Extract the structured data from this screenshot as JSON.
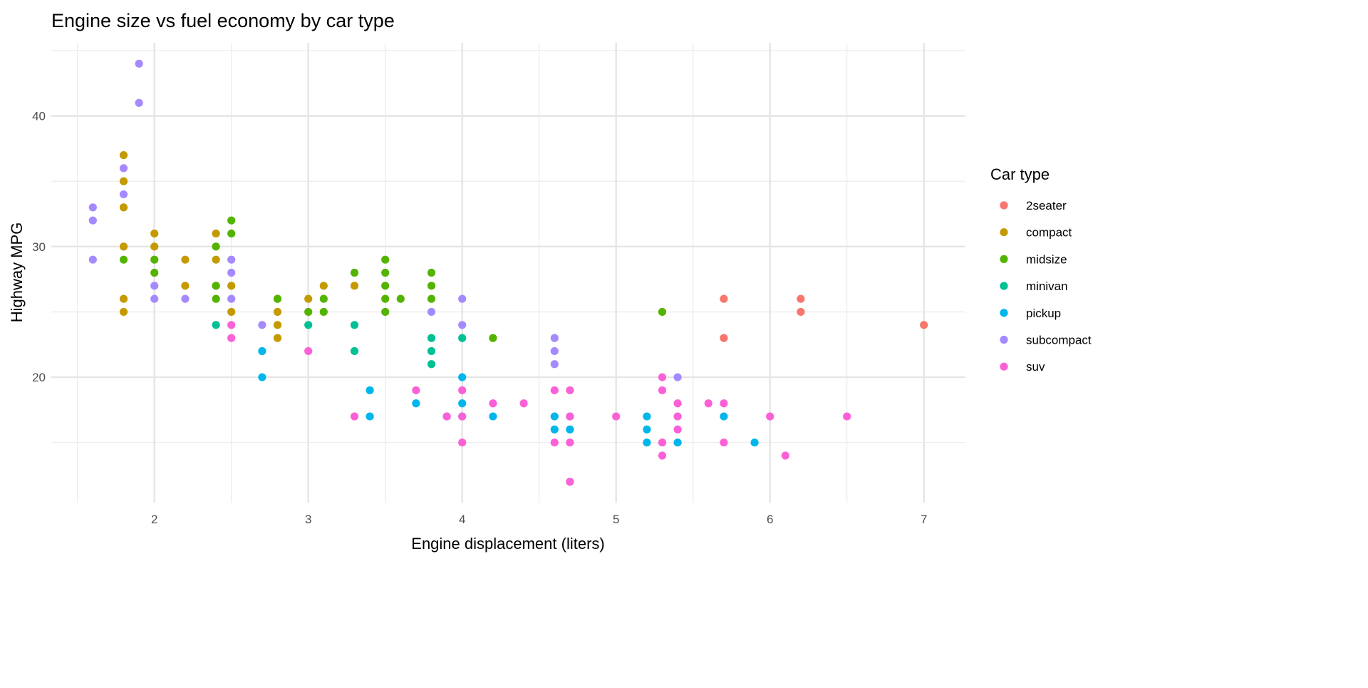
{
  "chart_data": {
    "type": "scatter",
    "title": "Engine size vs fuel economy by car type",
    "xlabel": "Engine displacement (liters)",
    "ylabel": "Highway MPG",
    "xlim": [
      1.33,
      7.27
    ],
    "ylim": [
      10.4,
      45.6
    ],
    "xticks": [
      2,
      3,
      4,
      5,
      6,
      7
    ],
    "yticks": [
      20,
      30,
      40
    ],
    "grid": true,
    "legend": {
      "title": "Car type",
      "position": "right"
    },
    "series": [
      {
        "name": "2seater",
        "color": "#F8766D",
        "points": [
          [
            5.7,
            26
          ],
          [
            5.7,
            23
          ],
          [
            6.2,
            26
          ],
          [
            6.2,
            25
          ],
          [
            7.0,
            24
          ]
        ]
      },
      {
        "name": "compact",
        "color": "#C49A00",
        "points": [
          [
            1.8,
            37
          ],
          [
            1.8,
            35
          ],
          [
            1.8,
            33
          ],
          [
            1.8,
            30
          ],
          [
            1.8,
            26
          ],
          [
            1.8,
            25
          ],
          [
            2.0,
            31
          ],
          [
            2.0,
            30
          ],
          [
            2.2,
            29
          ],
          [
            2.2,
            27
          ],
          [
            2.4,
            31
          ],
          [
            2.4,
            29
          ],
          [
            2.4,
            27
          ],
          [
            2.5,
            27
          ],
          [
            2.5,
            25
          ],
          [
            2.8,
            26
          ],
          [
            2.8,
            25
          ],
          [
            2.8,
            24
          ],
          [
            2.8,
            23
          ],
          [
            3.0,
            26
          ],
          [
            3.1,
            27
          ],
          [
            3.3,
            27
          ]
        ]
      },
      {
        "name": "midsize",
        "color": "#53B400",
        "points": [
          [
            1.8,
            29
          ],
          [
            2.0,
            29
          ],
          [
            2.0,
            28
          ],
          [
            2.4,
            30
          ],
          [
            2.4,
            27
          ],
          [
            2.4,
            26
          ],
          [
            2.5,
            32
          ],
          [
            2.5,
            31
          ],
          [
            2.8,
            26
          ],
          [
            3.0,
            25
          ],
          [
            3.1,
            26
          ],
          [
            3.1,
            25
          ],
          [
            3.3,
            28
          ],
          [
            3.5,
            29
          ],
          [
            3.5,
            28
          ],
          [
            3.5,
            27
          ],
          [
            3.5,
            26
          ],
          [
            3.5,
            25
          ],
          [
            3.6,
            26
          ],
          [
            3.8,
            28
          ],
          [
            3.8,
            27
          ],
          [
            3.8,
            26
          ],
          [
            4.2,
            23
          ],
          [
            5.3,
            25
          ]
        ]
      },
      {
        "name": "minivan",
        "color": "#00C094",
        "points": [
          [
            2.4,
            24
          ],
          [
            3.0,
            24
          ],
          [
            3.3,
            24
          ],
          [
            3.3,
            22
          ],
          [
            3.8,
            23
          ],
          [
            3.8,
            22
          ],
          [
            3.8,
            21
          ],
          [
            4.0,
            23
          ]
        ]
      },
      {
        "name": "pickup",
        "color": "#00B6EB",
        "points": [
          [
            2.7,
            22
          ],
          [
            2.7,
            20
          ],
          [
            3.4,
            19
          ],
          [
            3.4,
            17
          ],
          [
            3.7,
            18
          ],
          [
            4.0,
            20
          ],
          [
            4.0,
            18
          ],
          [
            4.0,
            17
          ],
          [
            4.2,
            17
          ],
          [
            4.6,
            17
          ],
          [
            4.6,
            16
          ],
          [
            4.7,
            17
          ],
          [
            4.7,
            16
          ],
          [
            4.7,
            12
          ],
          [
            5.2,
            17
          ],
          [
            5.2,
            16
          ],
          [
            5.2,
            15
          ],
          [
            5.4,
            15
          ],
          [
            5.7,
            17
          ],
          [
            5.9,
            15
          ]
        ]
      },
      {
        "name": "subcompact",
        "color": "#A58AFF",
        "points": [
          [
            1.6,
            33
          ],
          [
            1.6,
            32
          ],
          [
            1.6,
            29
          ],
          [
            1.8,
            36
          ],
          [
            1.8,
            34
          ],
          [
            1.9,
            44
          ],
          [
            1.9,
            41
          ],
          [
            2.0,
            27
          ],
          [
            2.0,
            26
          ],
          [
            2.2,
            26
          ],
          [
            2.5,
            29
          ],
          [
            2.5,
            28
          ],
          [
            2.5,
            26
          ],
          [
            2.7,
            24
          ],
          [
            3.8,
            25
          ],
          [
            3.9,
            17
          ],
          [
            4.0,
            26
          ],
          [
            4.0,
            24
          ],
          [
            4.6,
            23
          ],
          [
            4.6,
            22
          ],
          [
            4.6,
            21
          ],
          [
            5.4,
            20
          ]
        ]
      },
      {
        "name": "suv",
        "color": "#FB61D7",
        "points": [
          [
            2.5,
            24
          ],
          [
            2.5,
            23
          ],
          [
            3.0,
            22
          ],
          [
            3.3,
            17
          ],
          [
            3.7,
            19
          ],
          [
            3.9,
            17
          ],
          [
            4.0,
            19
          ],
          [
            4.0,
            17
          ],
          [
            4.0,
            15
          ],
          [
            4.2,
            18
          ],
          [
            4.4,
            18
          ],
          [
            4.6,
            19
          ],
          [
            4.6,
            15
          ],
          [
            4.7,
            19
          ],
          [
            4.7,
            17
          ],
          [
            4.7,
            15
          ],
          [
            4.7,
            12
          ],
          [
            5.0,
            17
          ],
          [
            5.3,
            20
          ],
          [
            5.3,
            19
          ],
          [
            5.3,
            15
          ],
          [
            5.3,
            14
          ],
          [
            5.4,
            18
          ],
          [
            5.4,
            17
          ],
          [
            5.4,
            16
          ],
          [
            5.6,
            18
          ],
          [
            5.7,
            18
          ],
          [
            5.7,
            15
          ],
          [
            6.0,
            17
          ],
          [
            6.1,
            14
          ],
          [
            6.5,
            17
          ]
        ]
      }
    ]
  }
}
